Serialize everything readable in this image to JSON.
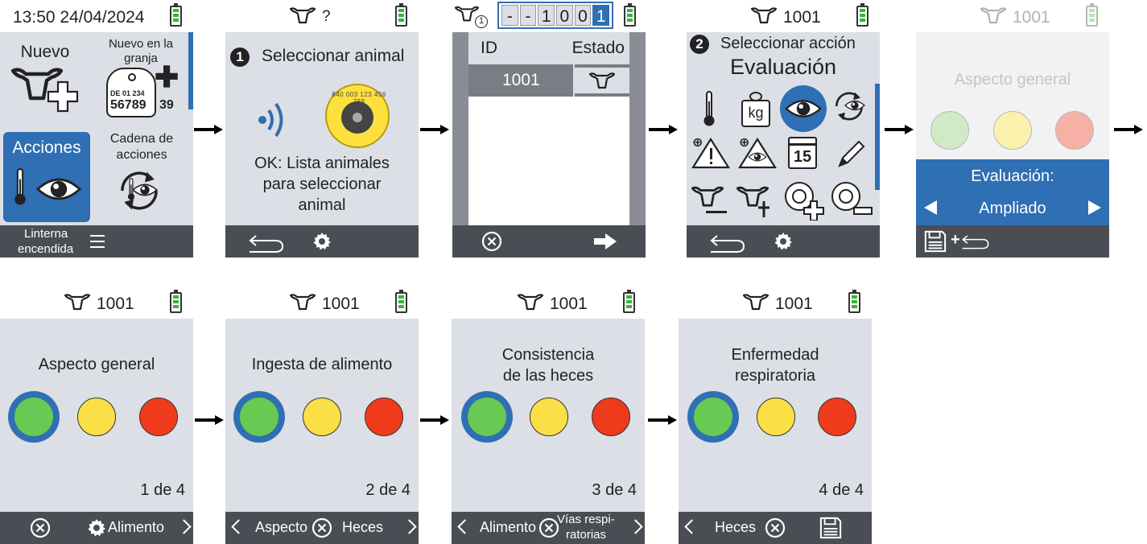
{
  "s1": {
    "time": "13:50 24/04/2024",
    "nuevo": "Nuevo",
    "nuevo_granja_1": "Nuevo en la",
    "nuevo_granja_2": "granja",
    "tag_1": "DE 01 234",
    "tag_2": "56789",
    "tag_3": "39",
    "acciones": "Acciones",
    "cadena_1": "Cadena de",
    "cadena_2": "acciones",
    "linterna_1": "Linterna",
    "linterna_2": "encendida"
  },
  "s2": {
    "status_q": "?",
    "step": "1",
    "title": "Seleccionar animal",
    "tag_text": "840 003 123 456 789",
    "hint_1": "OK: Lista animales",
    "hint_2": "para seleccionar",
    "hint_3": "animal"
  },
  "s3": {
    "digits": [
      "-",
      "-",
      "1",
      "0",
      "0",
      "1"
    ],
    "col_id": "ID",
    "col_estado": "Estado",
    "row_id": "1001",
    "cow_badge": "1"
  },
  "s4": {
    "animal_id": "1001",
    "step": "2",
    "title": "Seleccionar acción",
    "subtitle": "Evaluación",
    "kg": "kg",
    "cal": "15"
  },
  "s5": {
    "animal_id": "1001",
    "label": "Aspecto general",
    "eval_label": "Evaluación:",
    "option": "Ampliado",
    "plus": "+"
  },
  "s6": {
    "animal_id": "1001",
    "label": "Aspecto general",
    "page": "1 de 4",
    "next": "Alimento"
  },
  "s7": {
    "animal_id": "1001",
    "label": "Ingesta de alimento",
    "page": "2 de 4",
    "prev": "Aspecto",
    "next": "Heces"
  },
  "s8": {
    "animal_id": "1001",
    "label_1": "Consistencia",
    "label_2": "de las heces",
    "page": "3 de 4",
    "prev": "Alimento",
    "next_1": "Vías respi-",
    "next_2": "ratorias"
  },
  "s9": {
    "animal_id": "1001",
    "label_1": "Enfermedad",
    "label_2": "respiratoria",
    "page": "4 de 4",
    "prev": "Heces"
  },
  "colors": {
    "accent": "#2f6fb3",
    "panel": "#dcdfe5",
    "footer": "#4a4d53",
    "green": "#68c953",
    "yellow": "#fbdf47",
    "red": "#f03a1c",
    "battery": "#38b43a"
  }
}
